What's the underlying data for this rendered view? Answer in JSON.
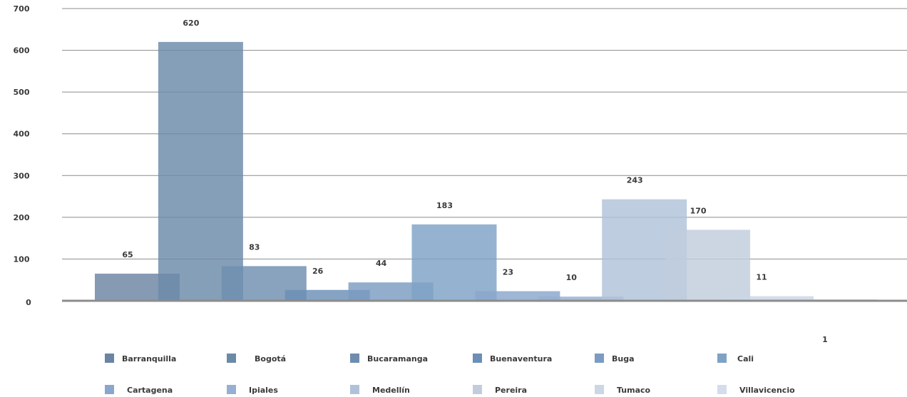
{
  "chart_data": {
    "type": "bar",
    "title": "",
    "xlabel": "",
    "ylabel": "",
    "ylim": [
      0,
      700
    ],
    "yticks": [
      0,
      100,
      200,
      300,
      400,
      500,
      600,
      700
    ],
    "grid": true,
    "legend_position": "bottom",
    "series": [
      {
        "name": "Barranquilla",
        "value": 65,
        "color": "#6b84a4"
      },
      {
        "name": "Bogotá",
        "value": 620,
        "color": "#6b8aa8"
      },
      {
        "name": "Bucaramanga",
        "value": 83,
        "color": "#6f8dae"
      },
      {
        "name": "Buenaventura",
        "value": 26,
        "color": "#6b8fb6"
      },
      {
        "name": "Buga",
        "value": 44,
        "color": "#7b9bc2"
      },
      {
        "name": "Cali",
        "value": 183,
        "color": "#7ea2c6"
      },
      {
        "name": "Cartagena",
        "value": 23,
        "color": "#8aa6cc"
      },
      {
        "name": "Ipiales",
        "value": 10,
        "color": "#97afd2"
      },
      {
        "name": "Medellín",
        "value": 243,
        "color": "#b0c2d9"
      },
      {
        "name": "Pereira",
        "value": 170,
        "color": "#c1cddd"
      },
      {
        "name": "Tumaco",
        "value": 11,
        "color": "#cbd6e6"
      },
      {
        "name": "Villavicencio",
        "value": 1,
        "color": "#d5dceb"
      }
    ]
  }
}
